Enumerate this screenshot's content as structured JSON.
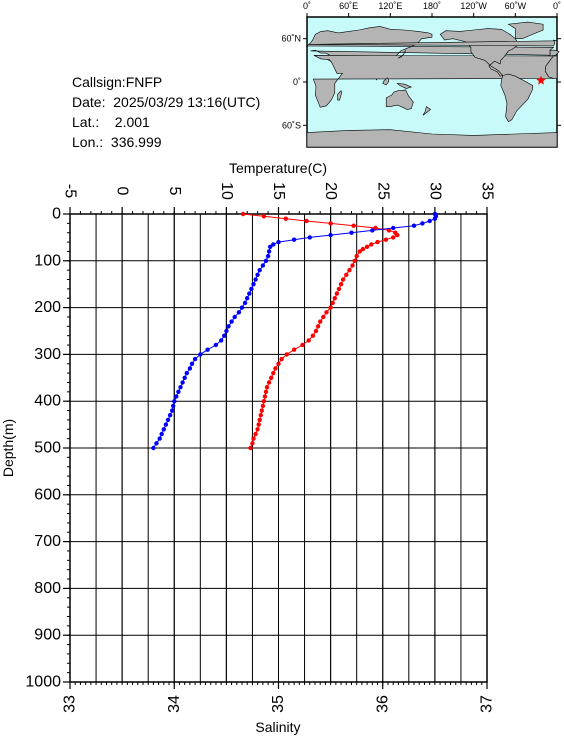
{
  "info": {
    "callsign": "Callsign:FNFP",
    "date": "Date:  2025/03/29 13:16(UTC)",
    "lat": "Lat.:    2.001",
    "lon": "Lon.:  336.999"
  },
  "map": {
    "lon_labels": [
      "0˚",
      "60˚E",
      "120˚E",
      "180˚",
      "120˚W",
      "60˚W",
      "0˚"
    ],
    "lat_labels": [
      "60˚N",
      "0˚",
      "60˚S"
    ],
    "ocean_color": "#c8fafa",
    "land_color": "#b4b4b4",
    "marker_color": "#ff0000",
    "marker_lon": 336.999,
    "marker_lat": 2.001
  },
  "chart_data": {
    "type": "line",
    "top_axis": {
      "label": "Temperature(C)",
      "range": [
        -5,
        35
      ],
      "ticks": [
        "-5",
        "0",
        "5",
        "10",
        "15",
        "20",
        "25",
        "30",
        "35"
      ]
    },
    "bottom_axis": {
      "label": "Salinity",
      "range": [
        33,
        37
      ],
      "ticks": [
        "33",
        "34",
        "35",
        "36",
        "37"
      ]
    },
    "y_axis": {
      "label": "Depth(m)",
      "range": [
        0,
        1000
      ],
      "inverted": true,
      "ticks": [
        "0",
        "100",
        "200",
        "300",
        "400",
        "500",
        "600",
        "700",
        "800",
        "900",
        "1000"
      ]
    },
    "grid": true,
    "series": [
      {
        "axis": "temperature",
        "color": "#ff0000",
        "points": [
          [
            11.6,
            0
          ],
          [
            13.6,
            5
          ],
          [
            15.7,
            10
          ],
          [
            17.7,
            15
          ],
          [
            20.0,
            20
          ],
          [
            22.2,
            25
          ],
          [
            24.3,
            30
          ],
          [
            25.6,
            35
          ],
          [
            26.2,
            40
          ],
          [
            26.4,
            45
          ],
          [
            26.0,
            50
          ],
          [
            25.3,
            55
          ],
          [
            24.5,
            60
          ],
          [
            23.9,
            65
          ],
          [
            23.5,
            70
          ],
          [
            23.1,
            75
          ],
          [
            22.8,
            80
          ],
          [
            22.5,
            90
          ],
          [
            22.3,
            100
          ],
          [
            22.1,
            110
          ],
          [
            21.8,
            120
          ],
          [
            21.5,
            130
          ],
          [
            21.2,
            140
          ],
          [
            21.0,
            150
          ],
          [
            20.8,
            160
          ],
          [
            20.6,
            170
          ],
          [
            20.4,
            180
          ],
          [
            20.2,
            190
          ],
          [
            20.0,
            200
          ],
          [
            19.6,
            210
          ],
          [
            19.3,
            220
          ],
          [
            19.0,
            230
          ],
          [
            18.8,
            240
          ],
          [
            18.6,
            250
          ],
          [
            18.3,
            260
          ],
          [
            17.9,
            270
          ],
          [
            17.3,
            280
          ],
          [
            16.5,
            290
          ],
          [
            15.8,
            300
          ],
          [
            15.3,
            310
          ],
          [
            15.0,
            320
          ],
          [
            14.7,
            330
          ],
          [
            14.5,
            340
          ],
          [
            14.3,
            350
          ],
          [
            14.1,
            360
          ],
          [
            13.9,
            370
          ],
          [
            13.8,
            380
          ],
          [
            13.7,
            390
          ],
          [
            13.6,
            400
          ],
          [
            13.5,
            410
          ],
          [
            13.4,
            420
          ],
          [
            13.3,
            430
          ],
          [
            13.2,
            440
          ],
          [
            13.1,
            450
          ],
          [
            13.0,
            460
          ],
          [
            12.8,
            470
          ],
          [
            12.6,
            480
          ],
          [
            12.5,
            490
          ],
          [
            12.3,
            500
          ]
        ]
      },
      {
        "axis": "salinity",
        "color": "#0000ff",
        "points": [
          [
            36.5,
            0
          ],
          [
            36.51,
            5
          ],
          [
            36.5,
            10
          ],
          [
            36.45,
            15
          ],
          [
            36.38,
            20
          ],
          [
            36.3,
            25
          ],
          [
            36.1,
            30
          ],
          [
            35.9,
            35
          ],
          [
            35.7,
            40
          ],
          [
            35.5,
            45
          ],
          [
            35.3,
            50
          ],
          [
            35.15,
            55
          ],
          [
            35.0,
            60
          ],
          [
            34.95,
            65
          ],
          [
            34.92,
            70
          ],
          [
            34.91,
            80
          ],
          [
            34.9,
            90
          ],
          [
            34.88,
            100
          ],
          [
            34.85,
            110
          ],
          [
            34.82,
            120
          ],
          [
            34.8,
            130
          ],
          [
            34.78,
            140
          ],
          [
            34.76,
            150
          ],
          [
            34.74,
            160
          ],
          [
            34.72,
            170
          ],
          [
            34.7,
            180
          ],
          [
            34.68,
            190
          ],
          [
            34.65,
            200
          ],
          [
            34.62,
            210
          ],
          [
            34.58,
            220
          ],
          [
            34.55,
            230
          ],
          [
            34.52,
            240
          ],
          [
            34.5,
            250
          ],
          [
            34.48,
            260
          ],
          [
            34.45,
            270
          ],
          [
            34.4,
            280
          ],
          [
            34.32,
            290
          ],
          [
            34.25,
            300
          ],
          [
            34.2,
            310
          ],
          [
            34.17,
            320
          ],
          [
            34.15,
            330
          ],
          [
            34.12,
            340
          ],
          [
            34.1,
            350
          ],
          [
            34.08,
            360
          ],
          [
            34.06,
            370
          ],
          [
            34.04,
            380
          ],
          [
            34.02,
            390
          ],
          [
            34.0,
            400
          ],
          [
            33.99,
            410
          ],
          [
            33.98,
            420
          ],
          [
            33.96,
            430
          ],
          [
            33.94,
            440
          ],
          [
            33.92,
            450
          ],
          [
            33.9,
            460
          ],
          [
            33.88,
            470
          ],
          [
            33.86,
            480
          ],
          [
            33.83,
            490
          ],
          [
            33.8,
            500
          ]
        ]
      }
    ]
  }
}
